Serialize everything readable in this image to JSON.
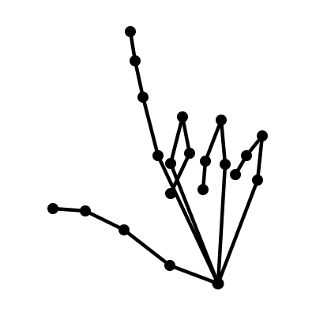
{
  "figure": {
    "background_color": "#ffffff",
    "line_color": "#000000",
    "joint_color": "#000000",
    "joint_count": 21,
    "bone_count": 20,
    "fingers": [
      "thumb",
      "index",
      "middle",
      "ring",
      "pinky"
    ]
  }
}
